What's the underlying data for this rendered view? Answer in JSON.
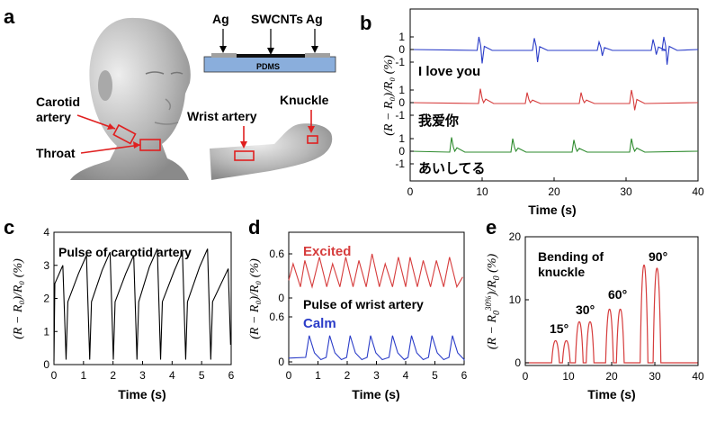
{
  "panels": {
    "a": {
      "label": "a",
      "schematic": {
        "electrode_left": "Ag",
        "electrode_right": "Ag",
        "channel": "SWCNTs",
        "substrate": "PDMS"
      },
      "annotations": {
        "carotid": "Carotid\nartery",
        "throat": "Throat",
        "wrist": "Wrist artery",
        "knuckle": "Knuckle"
      }
    },
    "b": {
      "label": "b"
    },
    "c": {
      "label": "c"
    },
    "d": {
      "label": "d"
    },
    "e": {
      "label": "e"
    }
  },
  "chart_data": [
    {
      "panel": "b",
      "type": "line",
      "xlabel": "Time (s)",
      "ylabel": "(R − R₀)/R₀ (%)",
      "xlim": [
        0,
        40
      ],
      "xticks": [
        0,
        10,
        20,
        30,
        40
      ],
      "yticks_per_series": [
        "1",
        "0",
        "-1"
      ],
      "series": [
        {
          "name": "I love you",
          "color": "#2a3cc8",
          "spikes": [
            [
              9.8,
              1.0,
              -1.1
            ],
            [
              17.5,
              0.9,
              -1.0
            ],
            [
              26.5,
              0.6,
              -0.5
            ],
            [
              34,
              0.8,
              -0.4
            ],
            [
              35.5,
              1.0,
              -1.2
            ]
          ]
        },
        {
          "name": "我爱你",
          "color": "#d63c3c",
          "spikes": [
            [
              10,
              1.1,
              0
            ],
            [
              16.5,
              0.8,
              0
            ],
            [
              24,
              0.8,
              0
            ],
            [
              31,
              1.0,
              -0.6
            ]
          ]
        },
        {
          "name": "あいしてる",
          "color": "#2e8b2e",
          "spikes": [
            [
              6,
              1.1,
              0
            ],
            [
              14.5,
              1.0,
              0
            ],
            [
              23,
              0.9,
              0
            ],
            [
              31,
              1.0,
              0
            ]
          ]
        }
      ]
    },
    {
      "panel": "c",
      "type": "line",
      "title": "Pulse of carotid artery",
      "xlabel": "Time (s)",
      "ylabel": "(R − R₀)/R₀ (%)",
      "xlim": [
        0,
        6
      ],
      "ylim": [
        0,
        4
      ],
      "xticks": [
        0,
        1,
        2,
        3,
        4,
        5,
        6
      ],
      "yticks": [
        0,
        1,
        2,
        3,
        4
      ],
      "color": "#000000",
      "peak_times": [
        0.35,
        1.15,
        1.95,
        2.75,
        3.55,
        4.4,
        5.25
      ],
      "peak_values": [
        3.0,
        3.3,
        3.4,
        3.3,
        3.5,
        3.4,
        3.5
      ],
      "baseline": 2.3
    },
    {
      "panel": "d",
      "type": "line",
      "title": "Pulse of wrist artery",
      "xlabel": "Time (s)",
      "ylabel": "(R − R₀)/R₀ (%)",
      "xlim": [
        0,
        6
      ],
      "xticks": [
        0,
        1,
        2,
        3,
        4,
        5,
        6
      ],
      "series": [
        {
          "name": "Excited",
          "color": "#d63c3c",
          "yticks": [
            0.6
          ],
          "peak_times": [
            0.2,
            0.6,
            1.1,
            1.55,
            2.0,
            2.45,
            2.9,
            3.35,
            3.8,
            4.2,
            4.65,
            5.1,
            5.55
          ],
          "peak_values": [
            0.45,
            0.5,
            0.55,
            0.45,
            0.55,
            0.5,
            0.6,
            0.45,
            0.55,
            0.55,
            0.5,
            0.5,
            0.55
          ]
        },
        {
          "name": "Calm",
          "color": "#2a3cc8",
          "yticks": [
            0,
            0.6,
            0
          ],
          "peak_times": [
            0.7,
            1.4,
            2.1,
            2.8,
            3.55,
            4.2,
            4.9,
            5.6
          ],
          "peak_values": [
            0.35,
            0.35,
            0.35,
            0.35,
            0.35,
            0.35,
            0.35,
            0.35
          ]
        }
      ]
    },
    {
      "panel": "e",
      "type": "line",
      "title": "Bending of\nknuckle",
      "xlabel": "Time (s)",
      "ylabel": "(R − R₀^{30%})/R₀ (%)",
      "xlim": [
        0,
        40
      ],
      "ylim": [
        0,
        20
      ],
      "xticks": [
        0,
        10,
        20,
        30,
        40
      ],
      "yticks": [
        0,
        10,
        20
      ],
      "color": "#d63c3c",
      "annotations": [
        "15°",
        "30°",
        "60°",
        "90°"
      ],
      "bends": [
        {
          "angle": "15°",
          "peaks": [
            [
              7,
              3.5
            ],
            [
              9.5,
              3.5
            ]
          ]
        },
        {
          "angle": "30°",
          "peaks": [
            [
              12.5,
              6.5
            ],
            [
              15,
              6.5
            ]
          ]
        },
        {
          "angle": "60°",
          "peaks": [
            [
              19.5,
              8.5
            ],
            [
              22,
              8.5
            ]
          ]
        },
        {
          "angle": "90°",
          "peaks": [
            [
              27.5,
              15.5
            ],
            [
              30.5,
              15.0
            ]
          ]
        }
      ]
    }
  ]
}
